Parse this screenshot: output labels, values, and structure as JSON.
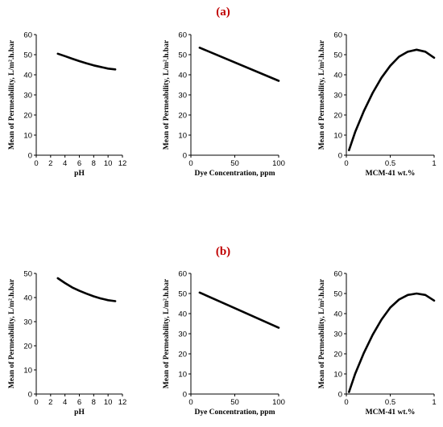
{
  "panels": [
    {
      "label": "(a)"
    },
    {
      "label": "(b)"
    }
  ],
  "chart_data": [
    {
      "type": "line",
      "panel": "(a)",
      "xlabel": "pH",
      "ylabel": "Mean of Permeability,  L/m².h.bar",
      "xlim": [
        0,
        12
      ],
      "ylim": [
        0,
        60
      ],
      "xticks": [
        0,
        2,
        4,
        6,
        8,
        10,
        12
      ],
      "yticks": [
        0,
        10,
        20,
        30,
        40,
        50,
        60
      ],
      "grid": false,
      "x": [
        3,
        4,
        5,
        6,
        7,
        8,
        9,
        10,
        11
      ],
      "y": [
        50.5,
        49.3,
        48.0,
        46.8,
        45.7,
        44.7,
        43.9,
        43.1,
        42.7
      ]
    },
    {
      "type": "line",
      "panel": "(a)",
      "xlabel": "Dye Concentration,  ppm",
      "ylabel": "Mean of Permeability,  L/m².h.bar",
      "xlim": [
        0,
        100
      ],
      "ylim": [
        0,
        60
      ],
      "xticks": [
        0,
        50,
        100
      ],
      "yticks": [
        0,
        10,
        20,
        30,
        40,
        50,
        60
      ],
      "grid": false,
      "x": [
        10,
        100
      ],
      "y": [
        53.5,
        37.0
      ]
    },
    {
      "type": "line",
      "panel": "(a)",
      "xlabel": "MCM-41  wt.%",
      "ylabel": "Mean of Permeability,  L/m².h.bar",
      "xlim": [
        0,
        1
      ],
      "ylim": [
        0,
        60
      ],
      "xticks": [
        0,
        0.5,
        1
      ],
      "yticks": [
        0,
        10,
        20,
        30,
        40,
        50,
        60
      ],
      "grid": false,
      "x": [
        0.03,
        0.1,
        0.2,
        0.3,
        0.4,
        0.5,
        0.6,
        0.7,
        0.8,
        0.9,
        1.0
      ],
      "y": [
        2.5,
        11.5,
        22.0,
        31.0,
        38.5,
        44.5,
        49.0,
        51.5,
        52.5,
        51.5,
        48.5
      ]
    },
    {
      "type": "line",
      "panel": "(b)",
      "xlabel": "pH",
      "ylabel": "Mean of Permeability,  L/m².h.bar",
      "xlim": [
        0,
        12
      ],
      "ylim": [
        0,
        50
      ],
      "xticks": [
        0,
        2,
        4,
        6,
        8,
        10,
        12
      ],
      "yticks": [
        0,
        10,
        20,
        30,
        40,
        50
      ],
      "grid": false,
      "x": [
        3,
        4,
        5,
        6,
        7,
        8,
        9,
        10,
        11
      ],
      "y": [
        48.0,
        46.0,
        44.2,
        42.8,
        41.6,
        40.5,
        39.6,
        38.9,
        38.5
      ]
    },
    {
      "type": "line",
      "panel": "(b)",
      "xlabel": "Dye Concentration,  ppm",
      "ylabel": "Mean of Permeability,  L/m².h.bar",
      "xlim": [
        0,
        100
      ],
      "ylim": [
        0,
        60
      ],
      "xticks": [
        0,
        50,
        100
      ],
      "yticks": [
        0,
        10,
        20,
        30,
        40,
        50,
        60
      ],
      "grid": false,
      "x": [
        10,
        100
      ],
      "y": [
        50.5,
        33.0
      ]
    },
    {
      "type": "line",
      "panel": "(b)",
      "xlabel": "MCM-41  wt.%",
      "ylabel": "Mean of Permeability,  L/m².h.bar",
      "xlim": [
        0,
        1
      ],
      "ylim": [
        0,
        60
      ],
      "xticks": [
        0,
        0.5,
        1
      ],
      "yticks": [
        0,
        10,
        20,
        30,
        40,
        50,
        60
      ],
      "grid": false,
      "x": [
        0.03,
        0.1,
        0.2,
        0.3,
        0.4,
        0.5,
        0.6,
        0.7,
        0.8,
        0.9,
        1.0
      ],
      "y": [
        1.0,
        10.0,
        20.5,
        29.5,
        37.0,
        43.0,
        47.0,
        49.3,
        50.0,
        49.3,
        46.5
      ]
    }
  ]
}
